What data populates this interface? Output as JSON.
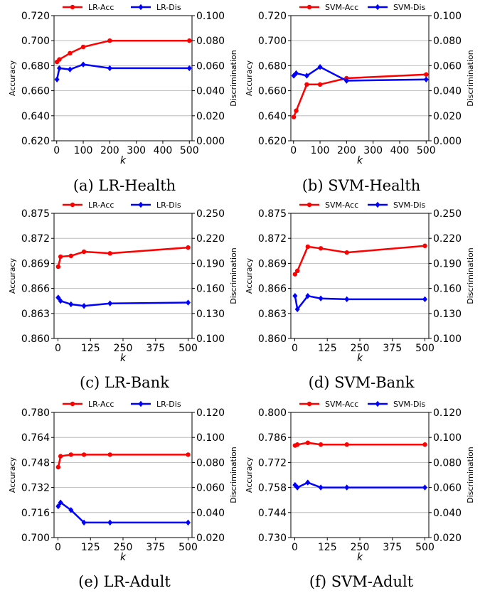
{
  "figure": {
    "colors": {
      "accuracy": "#ff0000",
      "discrimination": "#0000ff",
      "grid": "#b0b0b0"
    }
  },
  "chart_data": [
    {
      "type": "line",
      "caption": "(a) LR-Health",
      "xlabel": "k",
      "ylabel_left": "Accuracy",
      "ylabel_right": "Discrimination",
      "x_ticks": [
        "0",
        "100",
        "200",
        "300",
        "400",
        "500"
      ],
      "x_tick_values": [
        0,
        100,
        200,
        300,
        400,
        500
      ],
      "xlim": [
        -10,
        510
      ],
      "y_left_ticks": [
        "0.620",
        "0.640",
        "0.660",
        "0.680",
        "0.700",
        "0.720"
      ],
      "ylim_left": [
        0.62,
        0.72
      ],
      "y_right_ticks": [
        "0.000",
        "0.020",
        "0.040",
        "0.060",
        "0.080",
        "0.100"
      ],
      "ylim_right": [
        0.0,
        0.1
      ],
      "grid": true,
      "legend_position": "top",
      "x": [
        1,
        10,
        50,
        100,
        200,
        500
      ],
      "series": [
        {
          "name": "LR-Acc",
          "axis": "left",
          "color": "#ff0000",
          "values": [
            0.683,
            0.685,
            0.69,
            0.695,
            0.7,
            0.7
          ]
        },
        {
          "name": "LR-Dis",
          "axis": "right",
          "color": "#0000ff",
          "values": [
            0.049,
            0.058,
            0.057,
            0.061,
            0.058,
            0.058
          ]
        }
      ]
    },
    {
      "type": "line",
      "caption": "(b) SVM-Health",
      "xlabel": "k",
      "ylabel_left": "Accuracy",
      "ylabel_right": "Discrimination",
      "x_ticks": [
        "0",
        "100",
        "200",
        "300",
        "400",
        "500"
      ],
      "x_tick_values": [
        0,
        100,
        200,
        300,
        400,
        500
      ],
      "xlim": [
        -10,
        510
      ],
      "y_left_ticks": [
        "0.620",
        "0.640",
        "0.660",
        "0.680",
        "0.700",
        "0.720"
      ],
      "ylim_left": [
        0.62,
        0.72
      ],
      "y_right_ticks": [
        "0.000",
        "0.020",
        "0.040",
        "0.060",
        "0.080",
        "0.100"
      ],
      "ylim_right": [
        0.0,
        0.1
      ],
      "grid": true,
      "legend_position": "top",
      "x": [
        1,
        10,
        50,
        100,
        200,
        500
      ],
      "series": [
        {
          "name": "SVM-Acc",
          "axis": "left",
          "color": "#ff0000",
          "values": [
            0.639,
            0.644,
            0.665,
            0.665,
            0.67,
            0.673
          ]
        },
        {
          "name": "SVM-Dis",
          "axis": "right",
          "color": "#0000ff",
          "values": [
            0.052,
            0.054,
            0.052,
            0.059,
            0.048,
            0.049
          ]
        }
      ]
    },
    {
      "type": "line",
      "caption": "(c) LR-Bank",
      "xlabel": "k",
      "ylabel_left": "Accuracy",
      "ylabel_right": "Discrimination",
      "x_ticks": [
        "0",
        "125",
        "250",
        "375",
        "500"
      ],
      "x_tick_values": [
        0,
        125,
        250,
        375,
        500
      ],
      "xlim": [
        -15,
        515
      ],
      "y_left_ticks": [
        "0.860",
        "0.863",
        "0.866",
        "0.869",
        "0.872",
        "0.875"
      ],
      "ylim_left": [
        0.86,
        0.875
      ],
      "y_right_ticks": [
        "0.100",
        "0.130",
        "0.160",
        "0.190",
        "0.220",
        "0.250"
      ],
      "ylim_right": [
        0.1,
        0.25
      ],
      "grid": true,
      "legend_position": "top",
      "x": [
        1,
        10,
        50,
        100,
        200,
        500
      ],
      "series": [
        {
          "name": "LR-Acc",
          "axis": "left",
          "color": "#ff0000",
          "values": [
            0.8686,
            0.8698,
            0.8699,
            0.8704,
            0.8702,
            0.8709
          ]
        },
        {
          "name": "LR-Dis",
          "axis": "right",
          "color": "#0000ff",
          "values": [
            0.149,
            0.145,
            0.141,
            0.139,
            0.142,
            0.143
          ]
        }
      ]
    },
    {
      "type": "line",
      "caption": "(d) SVM-Bank",
      "xlabel": "k",
      "ylabel_left": "Accuracy",
      "ylabel_right": "Discrimination",
      "x_ticks": [
        "0",
        "125",
        "250",
        "375",
        "500"
      ],
      "x_tick_values": [
        0,
        125,
        250,
        375,
        500
      ],
      "xlim": [
        -15,
        515
      ],
      "y_left_ticks": [
        "0.860",
        "0.863",
        "0.866",
        "0.869",
        "0.872",
        "0.875"
      ],
      "ylim_left": [
        0.86,
        0.875
      ],
      "y_right_ticks": [
        "0.100",
        "0.130",
        "0.160",
        "0.190",
        "0.220",
        "0.250"
      ],
      "ylim_right": [
        0.1,
        0.25
      ],
      "grid": true,
      "legend_position": "top",
      "x": [
        1,
        10,
        50,
        100,
        200,
        500
      ],
      "series": [
        {
          "name": "SVM-Acc",
          "axis": "left",
          "color": "#ff0000",
          "values": [
            0.8677,
            0.8681,
            0.871,
            0.8708,
            0.8703,
            0.8711
          ]
        },
        {
          "name": "SVM-Dis",
          "axis": "right",
          "color": "#0000ff",
          "values": [
            0.151,
            0.135,
            0.151,
            0.148,
            0.147,
            0.147
          ]
        }
      ]
    },
    {
      "type": "line",
      "caption": "(e) LR-Adult",
      "xlabel": "k",
      "ylabel_left": "Accuracy",
      "ylabel_right": "Discrimination",
      "x_ticks": [
        "0",
        "125",
        "250",
        "375",
        "500"
      ],
      "x_tick_values": [
        0,
        125,
        250,
        375,
        500
      ],
      "xlim": [
        -15,
        515
      ],
      "y_left_ticks": [
        "0.700",
        "0.716",
        "0.732",
        "0.748",
        "0.764",
        "0.780"
      ],
      "ylim_left": [
        0.7,
        0.78
      ],
      "y_right_ticks": [
        "0.020",
        "0.040",
        "0.060",
        "0.080",
        "0.100",
        "0.120"
      ],
      "ylim_right": [
        0.02,
        0.12
      ],
      "grid": true,
      "legend_position": "top",
      "x": [
        1,
        10,
        50,
        100,
        200,
        500
      ],
      "series": [
        {
          "name": "LR-Acc",
          "axis": "left",
          "color": "#ff0000",
          "values": [
            0.745,
            0.752,
            0.753,
            0.753,
            0.753,
            0.753
          ]
        },
        {
          "name": "LR-Dis",
          "axis": "right",
          "color": "#0000ff",
          "values": [
            0.045,
            0.048,
            0.042,
            0.032,
            0.032,
            0.032
          ]
        }
      ]
    },
    {
      "type": "line",
      "caption": "(f) SVM-Adult",
      "xlabel": "k",
      "ylabel_left": "Accuracy",
      "ylabel_right": "Discrimination",
      "x_ticks": [
        "0",
        "125",
        "250",
        "375",
        "500"
      ],
      "x_tick_values": [
        0,
        125,
        250,
        375,
        500
      ],
      "xlim": [
        -15,
        515
      ],
      "y_left_ticks": [
        "0.730",
        "0.744",
        "0.758",
        "0.772",
        "0.786",
        "0.800"
      ],
      "ylim_left": [
        0.73,
        0.8
      ],
      "y_right_ticks": [
        "0.020",
        "0.040",
        "0.060",
        "0.080",
        "0.100",
        "0.120"
      ],
      "ylim_right": [
        0.02,
        0.12
      ],
      "grid": true,
      "legend_position": "top",
      "x": [
        1,
        10,
        50,
        100,
        200,
        500
      ],
      "series": [
        {
          "name": "SVM-Acc",
          "axis": "left",
          "color": "#ff0000",
          "values": [
            0.7815,
            0.782,
            0.783,
            0.782,
            0.782,
            0.782
          ]
        },
        {
          "name": "SVM-Dis",
          "axis": "right",
          "color": "#0000ff",
          "values": [
            0.062,
            0.06,
            0.064,
            0.06,
            0.06,
            0.06
          ]
        }
      ]
    }
  ]
}
